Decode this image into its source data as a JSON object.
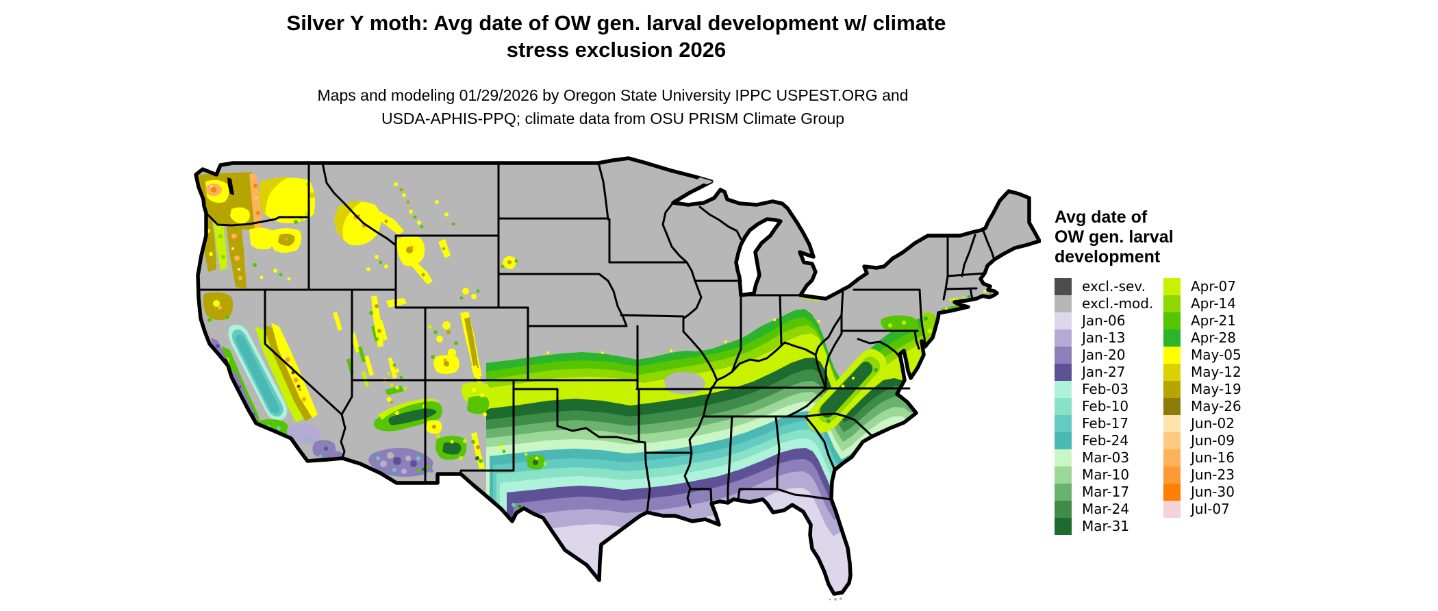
{
  "title": {
    "line1": "Silver Y moth: Avg date of OW gen. larval development w/ climate",
    "line2": "stress exclusion 2026"
  },
  "subtitle": {
    "line1": "Maps and modeling 01/29/2026 by Oregon State University IPPC USPEST.ORG and",
    "line2": "USDA-APHIS-PPQ; climate data from OSU PRISM Climate Group"
  },
  "legend": {
    "title_lines": [
      "Avg date of",
      "OW gen. larval",
      "development"
    ],
    "left_column": [
      {
        "label": "excl.-sev.",
        "color": "#4d4d4d"
      },
      {
        "label": "excl.-mod.",
        "color": "#b7b7b7"
      },
      {
        "label": "Jan-06",
        "color": "#dcd7ea"
      },
      {
        "label": "Jan-13",
        "color": "#b5aad3"
      },
      {
        "label": "Jan-20",
        "color": "#8c7fba"
      },
      {
        "label": "Jan-27",
        "color": "#5f5196"
      },
      {
        "label": "Feb-03",
        "color": "#aff2dc"
      },
      {
        "label": "Feb-10",
        "color": "#88e2c6"
      },
      {
        "label": "Feb-17",
        "color": "#64cbc2"
      },
      {
        "label": "Feb-24",
        "color": "#4bb8b4"
      },
      {
        "label": "Mar-03",
        "color": "#caf6c5"
      },
      {
        "label": "Mar-10",
        "color": "#9cd898"
      },
      {
        "label": "Mar-17",
        "color": "#6ab26e"
      },
      {
        "label": "Mar-24",
        "color": "#3f8c4a"
      },
      {
        "label": "Mar-31",
        "color": "#1d6b2e"
      }
    ],
    "right_column": [
      {
        "label": "Apr-07",
        "color": "#c8f200"
      },
      {
        "label": "Apr-14",
        "color": "#90d700"
      },
      {
        "label": "Apr-21",
        "color": "#56c500"
      },
      {
        "label": "Apr-28",
        "color": "#2db42d"
      },
      {
        "label": "May-05",
        "color": "#ffff00"
      },
      {
        "label": "May-12",
        "color": "#ddd000"
      },
      {
        "label": "May-19",
        "color": "#b6a500"
      },
      {
        "label": "May-26",
        "color": "#8b7c08"
      },
      {
        "label": "Jun-02",
        "color": "#ffe3ab"
      },
      {
        "label": "Jun-09",
        "color": "#ffca80"
      },
      {
        "label": "Jun-16",
        "color": "#ffb259"
      },
      {
        "label": "Jun-23",
        "color": "#ff9933"
      },
      {
        "label": "Jun-30",
        "color": "#ff7f00"
      },
      {
        "label": "Jul-07",
        "color": "#f4d2d8"
      }
    ]
  },
  "map": {
    "water_color": "#ffffff",
    "state_border_color": "#000000",
    "excluded_moderate_color": "#b7b7b7",
    "excluded_severe_color": "#4d4d4d"
  }
}
